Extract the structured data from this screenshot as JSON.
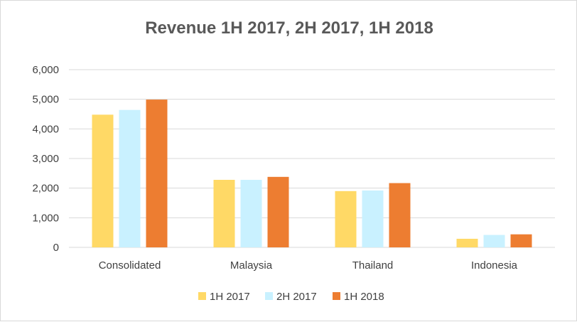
{
  "chart_data": {
    "type": "bar",
    "title": "Revenue 1H 2017, 2H 2017, 1H 2018",
    "xlabel": "",
    "ylabel": "",
    "categories": [
      "Consolidated",
      "Malaysia",
      "Thailand",
      "Indonesia"
    ],
    "series": [
      {
        "name": "1H 2017",
        "color": "#FFD966",
        "values": [
          4480,
          2280,
          1900,
          290
        ]
      },
      {
        "name": "2H 2017",
        "color": "#C9F1FF",
        "values": [
          4640,
          2280,
          1920,
          420
        ]
      },
      {
        "name": "1H 2018",
        "color": "#ED7D31",
        "values": [
          4990,
          2380,
          2170,
          440
        ]
      }
    ],
    "ylim": [
      0,
      6000
    ],
    "yticks": [
      0,
      1000,
      2000,
      3000,
      4000,
      5000,
      6000
    ],
    "ytick_labels": [
      "0",
      "1,000",
      "2,000",
      "3,000",
      "4,000",
      "5,000",
      "6,000"
    ],
    "grid": true,
    "gridline_color": "#d9d9d9",
    "legend_position": "bottom"
  }
}
